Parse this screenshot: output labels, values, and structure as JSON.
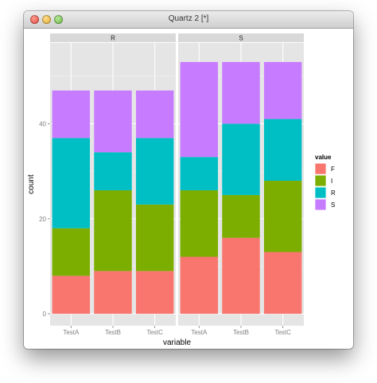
{
  "window": {
    "title": "Quartz 2 [*]"
  },
  "chart_data": {
    "type": "bar",
    "stacked": true,
    "facets": [
      "R",
      "S"
    ],
    "categories": [
      "TestA",
      "TestB",
      "TestC"
    ],
    "xlabel": "variable",
    "ylabel": "count",
    "yticks": [
      0,
      20,
      40
    ],
    "ylim": [
      -2.5,
      57
    ],
    "grid": true,
    "legend": {
      "title": "value",
      "position": "right",
      "entries": [
        "F",
        "I",
        "R",
        "S"
      ]
    },
    "series": [
      {
        "name": "F",
        "color": "#f8766d",
        "values": {
          "R": [
            8,
            9,
            9
          ],
          "S": [
            12,
            16,
            13
          ]
        }
      },
      {
        "name": "I",
        "color": "#7cae00",
        "values": {
          "R": [
            10,
            17,
            14
          ],
          "S": [
            14,
            9,
            15
          ]
        }
      },
      {
        "name": "R",
        "color": "#00bfc4",
        "values": {
          "R": [
            19,
            8,
            14
          ],
          "S": [
            7,
            15,
            13
          ]
        }
      },
      {
        "name": "S",
        "color": "#c77cff",
        "values": {
          "R": [
            10,
            13,
            10
          ],
          "S": [
            20,
            13,
            12
          ]
        }
      }
    ]
  }
}
